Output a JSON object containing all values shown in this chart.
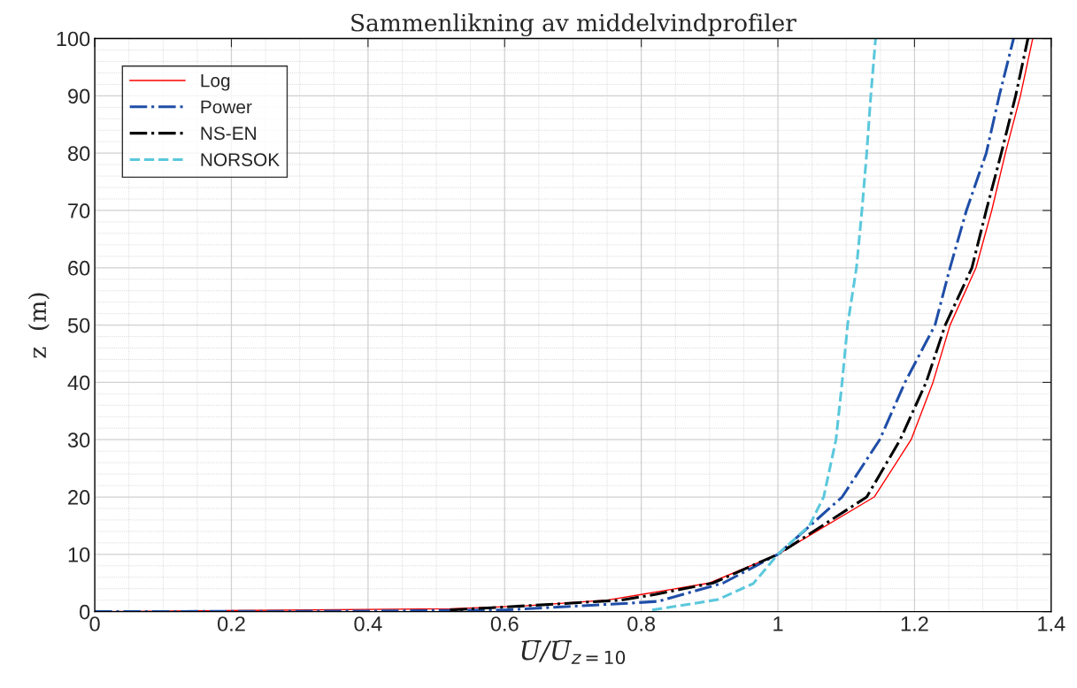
{
  "chart_data": {
    "type": "line",
    "title": "Sammenlikning av middelvindprofiler",
    "xlabel": "U̅/U̅$_{z=10}$",
    "ylabel": "z  (m)",
    "xlim": [
      0,
      1.4
    ],
    "ylim": [
      0,
      100
    ],
    "xticks": [
      0,
      0.2,
      0.4,
      0.6,
      0.8,
      1,
      1.2,
      1.4
    ],
    "yticks": [
      0,
      10,
      20,
      30,
      40,
      50,
      60,
      70,
      80,
      90,
      100
    ],
    "grid": true,
    "legend": "top left",
    "series": [
      {
        "name": "Log",
        "color": "#ff0000",
        "line_style": "solid",
        "x": [
          0,
          0.52,
          0.63,
          0.75,
          0.8,
          0.9,
          1.0,
          1.141,
          1.195,
          1.227,
          1.252,
          1.29,
          1.313,
          1.333,
          1.355,
          1.373
        ],
        "values": [
          0,
          0.5,
          1,
          2,
          3,
          5,
          10,
          20,
          30,
          40,
          50,
          60,
          70,
          80,
          90,
          100
        ]
      },
      {
        "name": "Power",
        "color": "#1f4ea8",
        "line_style": "dashdot",
        "x": [
          0,
          0.4,
          0.6,
          0.786,
          0.825,
          0.92,
          1.0,
          1.094,
          1.149,
          1.186,
          1.23,
          1.252,
          1.276,
          1.305,
          1.324,
          1.345
        ],
        "values": [
          0,
          0.1,
          0.3,
          1.5,
          1.8,
          5,
          10,
          20,
          30,
          40,
          50,
          60,
          70,
          80,
          90,
          100
        ]
      },
      {
        "name": "NS-EN",
        "color": "#000000",
        "line_style": "dashdot",
        "x": [
          0.52,
          0.6,
          0.77,
          0.82,
          0.905,
          1.0,
          1.13,
          1.179,
          1.217,
          1.245,
          1.284,
          1.305,
          1.327,
          1.348,
          1.366
        ],
        "values": [
          0.3,
          0.8,
          2,
          3,
          5,
          10,
          20,
          30,
          40,
          50,
          60,
          70,
          80,
          90,
          100
        ]
      },
      {
        "name": "NORSOK",
        "color": "#5bc8dc",
        "line_style": "dashed",
        "x": [
          0.816,
          0.912,
          0.964,
          1.0,
          1.046,
          1.067,
          1.085,
          1.094,
          1.102,
          1.115,
          1.123,
          1.13,
          1.136,
          1.143
        ],
        "values": [
          0.3,
          2.1,
          4.9,
          10,
          15,
          20,
          30,
          40,
          50,
          60,
          70,
          80,
          90,
          100
        ]
      }
    ]
  }
}
